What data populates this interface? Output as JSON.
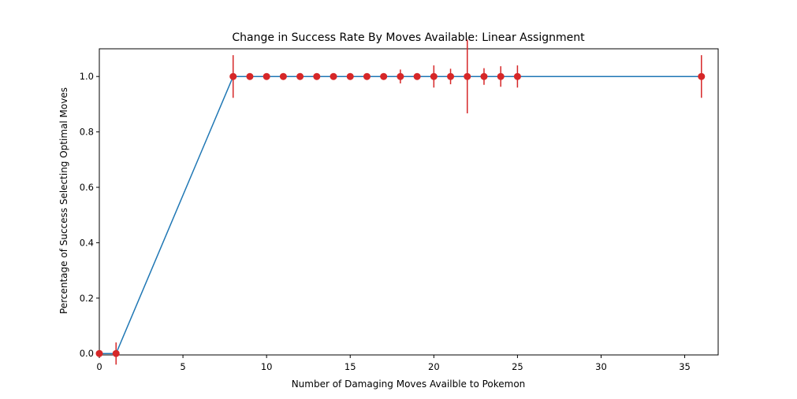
{
  "chart_data": {
    "type": "line",
    "title": "Change in Success Rate By Moves Available:  Linear Assignment",
    "xlabel": "Number of Damaging Moves Availble to Pokemon",
    "ylabel": "Percentage of Success Selecting Optimal Moves",
    "xlim": [
      0,
      37
    ],
    "ylim": [
      -0.005,
      1.1
    ],
    "x_ticks": [
      0,
      5,
      10,
      15,
      20,
      25,
      30,
      35
    ],
    "y_ticks": [
      0.0,
      0.2,
      0.4,
      0.6,
      0.8,
      1.0
    ],
    "x_tick_labels": [
      "0",
      "5",
      "10",
      "15",
      "20",
      "25",
      "30",
      "35"
    ],
    "y_tick_labels": [
      "0.0",
      "0.2",
      "0.4",
      "0.6",
      "0.8",
      "1.0"
    ],
    "grid": false,
    "line_color": "#1f77b4",
    "marker_color": "#d62728",
    "series": [
      {
        "x": [
          0,
          1,
          8,
          9,
          10,
          11,
          12,
          13,
          14,
          15,
          16,
          17,
          18,
          19,
          20,
          21,
          22,
          23,
          24,
          25,
          36
        ],
        "y": [
          0,
          0,
          1,
          1,
          1,
          1,
          1,
          1,
          1,
          1,
          1,
          1,
          1,
          1,
          1,
          1,
          1,
          1,
          1,
          1,
          1
        ],
        "yerr": [
          0,
          0.04,
          0.077,
          0,
          0,
          0,
          0,
          0,
          0,
          0,
          0,
          0,
          0.025,
          0,
          0.04,
          0.028,
          0.133,
          0.03,
          0.037,
          0.04,
          0.077
        ]
      }
    ]
  }
}
